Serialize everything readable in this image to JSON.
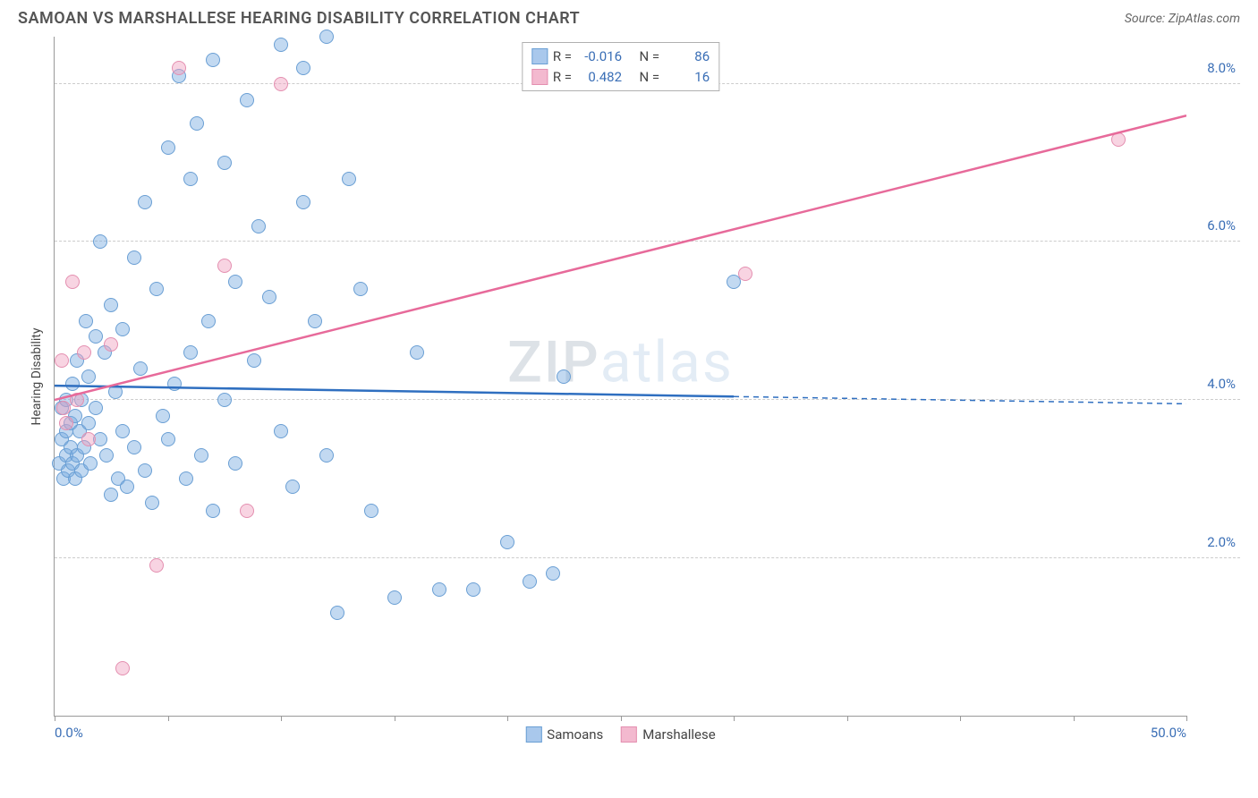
{
  "header": {
    "title": "SAMOAN VS MARSHALLESE HEARING DISABILITY CORRELATION CHART",
    "source": "Source: ZipAtlas.com"
  },
  "watermark": {
    "part1": "ZIP",
    "part2": "atlas"
  },
  "chart": {
    "type": "scatter",
    "y_axis_title": "Hearing Disability",
    "xlim": [
      0,
      50
    ],
    "ylim": [
      0,
      8.6
    ],
    "x_ticks": [
      0,
      5,
      10,
      15,
      20,
      25,
      30,
      35,
      40,
      45,
      50
    ],
    "x_tick_labels": {
      "0": "0.0%",
      "50": "50.0%"
    },
    "y_gridlines": [
      2,
      4,
      6,
      8
    ],
    "y_tick_labels": {
      "2": "2.0%",
      "4": "4.0%",
      "6": "6.0%",
      "8": "8.0%"
    },
    "grid_color": "#cccccc",
    "axis_color": "#999999",
    "background_color": "#ffffff",
    "tick_label_color": "#3b6fb6",
    "axis_title_color": "#444444",
    "marker_radius": 8,
    "marker_stroke_width": 1,
    "series": [
      {
        "name": "Samoans",
        "fill_color": "rgba(120,170,225,0.45)",
        "stroke_color": "#6a9fd4",
        "legend_swatch_fill": "#a9c8ec",
        "legend_swatch_stroke": "#6a9fd4",
        "R": "-0.016",
        "N": "86",
        "trend": {
          "y_at_xmin": 4.18,
          "y_at_xmax": 3.95,
          "solid_until_x": 30,
          "color": "#2f6fc0",
          "width": 2.5
        },
        "points": [
          [
            0.2,
            3.2
          ],
          [
            0.3,
            3.5
          ],
          [
            0.3,
            3.9
          ],
          [
            0.4,
            3.0
          ],
          [
            0.5,
            3.3
          ],
          [
            0.5,
            3.6
          ],
          [
            0.5,
            4.0
          ],
          [
            0.6,
            3.1
          ],
          [
            0.7,
            3.4
          ],
          [
            0.7,
            3.7
          ],
          [
            0.8,
            3.2
          ],
          [
            0.8,
            4.2
          ],
          [
            0.9,
            3.0
          ],
          [
            0.9,
            3.8
          ],
          [
            1.0,
            3.3
          ],
          [
            1.0,
            4.5
          ],
          [
            1.1,
            3.6
          ],
          [
            1.2,
            3.1
          ],
          [
            1.2,
            4.0
          ],
          [
            1.3,
            3.4
          ],
          [
            1.4,
            5.0
          ],
          [
            1.5,
            3.7
          ],
          [
            1.5,
            4.3
          ],
          [
            1.6,
            3.2
          ],
          [
            1.8,
            3.9
          ],
          [
            1.8,
            4.8
          ],
          [
            2.0,
            3.5
          ],
          [
            2.0,
            6.0
          ],
          [
            2.2,
            4.6
          ],
          [
            2.3,
            3.3
          ],
          [
            2.5,
            5.2
          ],
          [
            2.5,
            2.8
          ],
          [
            2.7,
            4.1
          ],
          [
            2.8,
            3.0
          ],
          [
            3.0,
            4.9
          ],
          [
            3.0,
            3.6
          ],
          [
            3.2,
            2.9
          ],
          [
            3.5,
            5.8
          ],
          [
            3.5,
            3.4
          ],
          [
            3.8,
            4.4
          ],
          [
            4.0,
            3.1
          ],
          [
            4.0,
            6.5
          ],
          [
            4.3,
            2.7
          ],
          [
            4.5,
            5.4
          ],
          [
            4.8,
            3.8
          ],
          [
            5.0,
            7.2
          ],
          [
            5.0,
            3.5
          ],
          [
            5.3,
            4.2
          ],
          [
            5.5,
            8.1
          ],
          [
            5.8,
            3.0
          ],
          [
            6.0,
            6.8
          ],
          [
            6.0,
            4.6
          ],
          [
            6.3,
            7.5
          ],
          [
            6.5,
            3.3
          ],
          [
            6.8,
            5.0
          ],
          [
            7.0,
            8.3
          ],
          [
            7.0,
            2.6
          ],
          [
            7.5,
            7.0
          ],
          [
            7.5,
            4.0
          ],
          [
            8.0,
            5.5
          ],
          [
            8.0,
            3.2
          ],
          [
            8.5,
            7.8
          ],
          [
            8.8,
            4.5
          ],
          [
            9.0,
            6.2
          ],
          [
            9.5,
            5.3
          ],
          [
            10.0,
            8.5
          ],
          [
            10.0,
            3.6
          ],
          [
            10.5,
            2.9
          ],
          [
            11.0,
            8.2
          ],
          [
            11.0,
            6.5
          ],
          [
            11.5,
            5.0
          ],
          [
            12.0,
            8.6
          ],
          [
            12.0,
            3.3
          ],
          [
            12.5,
            1.3
          ],
          [
            13.0,
            6.8
          ],
          [
            13.5,
            5.4
          ],
          [
            14.0,
            2.6
          ],
          [
            15.0,
            1.5
          ],
          [
            16.0,
            4.6
          ],
          [
            17.0,
            1.6
          ],
          [
            18.5,
            1.6
          ],
          [
            20.0,
            2.2
          ],
          [
            21.0,
            1.7
          ],
          [
            22.0,
            1.8
          ],
          [
            22.5,
            4.3
          ],
          [
            30.0,
            5.5
          ]
        ]
      },
      {
        "name": "Marshallese",
        "fill_color": "rgba(240,160,190,0.45)",
        "stroke_color": "#e48fb0",
        "legend_swatch_fill": "#f3b9cf",
        "legend_swatch_stroke": "#e48fb0",
        "R": "0.482",
        "N": "16",
        "trend": {
          "y_at_xmin": 4.0,
          "y_at_xmax": 7.6,
          "solid_until_x": 50,
          "color": "#e76a9a",
          "width": 2.5
        },
        "points": [
          [
            0.3,
            4.5
          ],
          [
            0.4,
            3.9
          ],
          [
            0.5,
            3.7
          ],
          [
            0.8,
            5.5
          ],
          [
            1.0,
            4.0
          ],
          [
            1.3,
            4.6
          ],
          [
            1.5,
            3.5
          ],
          [
            2.5,
            4.7
          ],
          [
            3.0,
            0.6
          ],
          [
            4.5,
            1.9
          ],
          [
            5.5,
            8.2
          ],
          [
            7.5,
            5.7
          ],
          [
            8.5,
            2.6
          ],
          [
            10.0,
            8.0
          ],
          [
            30.5,
            5.6
          ],
          [
            47.0,
            7.3
          ]
        ]
      }
    ],
    "legend_top": {
      "R_label": "R =",
      "N_label": "N ="
    },
    "legend_bottom": [
      {
        "label": "Samoans",
        "fill": "#a9c8ec",
        "stroke": "#6a9fd4"
      },
      {
        "label": "Marshallese",
        "fill": "#f3b9cf",
        "stroke": "#e48fb0"
      }
    ]
  }
}
